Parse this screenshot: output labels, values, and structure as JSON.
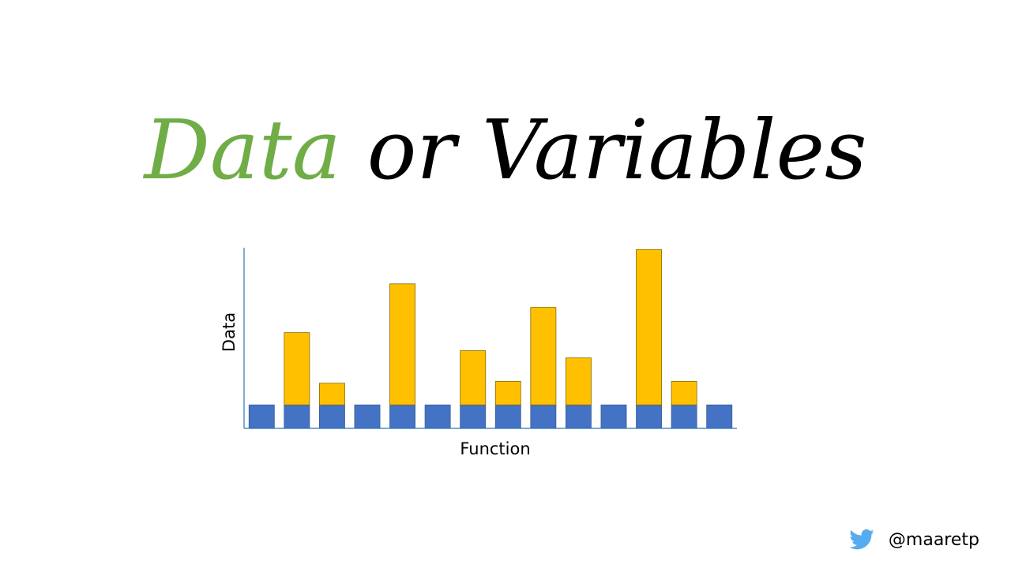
{
  "slide": {
    "title_part1": "Data",
    "title_part2": "or Variables",
    "title_accent_color": "#70ad47",
    "handle": "@maaretp",
    "handle_icon": "twitter-bird-icon",
    "icon_color": "#55acee"
  },
  "chart_data": {
    "type": "bar",
    "stacked": true,
    "xlabel": "Function",
    "ylabel": "Data",
    "ylim": [
      0,
      100
    ],
    "legend": "none",
    "grid": false,
    "axis_color": "#2e75b6",
    "categories": [
      "",
      "",
      "",
      "",
      "",
      "",
      "",
      "",
      "",
      "",
      "",
      "",
      "",
      ""
    ],
    "series": [
      {
        "color": "#4472c4",
        "values": [
          13,
          13,
          13,
          13,
          13,
          13,
          13,
          13,
          13,
          13,
          13,
          13,
          13,
          13
        ]
      },
      {
        "color": "#ffc000",
        "values": [
          0,
          40,
          12,
          0,
          67,
          0,
          30,
          13,
          54,
          26,
          0,
          86,
          13,
          0
        ]
      }
    ]
  }
}
